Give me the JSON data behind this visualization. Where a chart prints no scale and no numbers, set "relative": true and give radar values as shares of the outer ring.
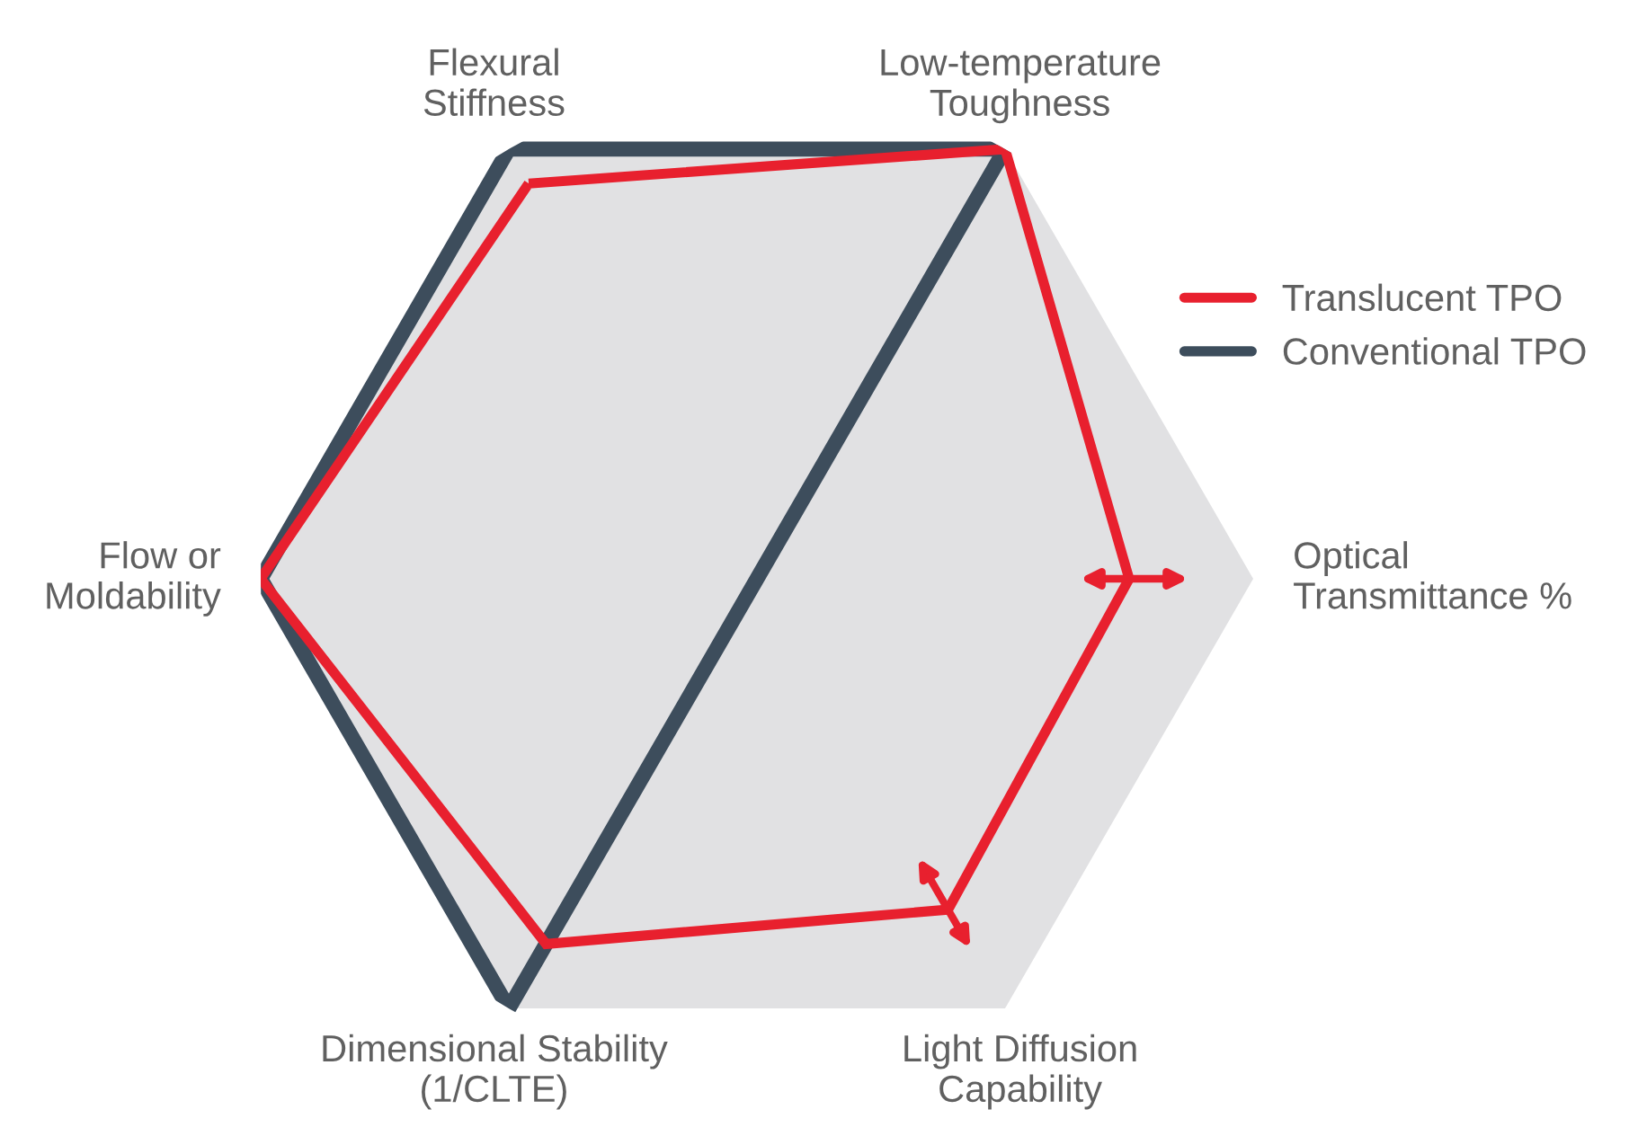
{
  "chart_data": {
    "type": "radar",
    "relative": true,
    "categories": [
      "Flexural\nStiffness",
      "Low-temperature\nToughness",
      "Optical\nTransmittance %",
      "Light Diffusion\nCapability",
      "Dimensional Stability\n(1/CLTE)",
      "Flow or\nMoldability"
    ],
    "series": [
      {
        "name": "Translucent TPO",
        "color": "#e8202e",
        "values": [
          0.92,
          1.0,
          0.75,
          0.77,
          0.85,
          1.0
        ]
      },
      {
        "name": "Conventional TPO",
        "color": "#3d4d5c",
        "values": [
          1.0,
          1.0,
          0,
          0,
          1.0,
          1.0
        ]
      }
    ],
    "legend": "top right"
  }
}
